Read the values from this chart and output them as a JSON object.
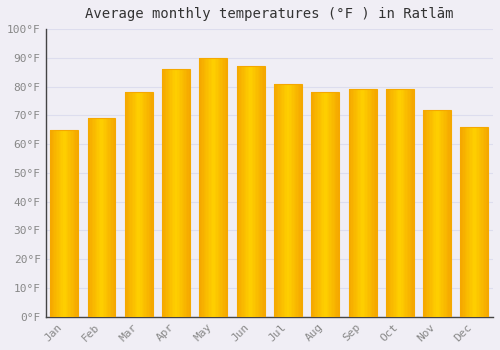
{
  "title": "Average monthly temperatures (°F ) in Ratlām",
  "months": [
    "Jan",
    "Feb",
    "Mar",
    "Apr",
    "May",
    "Jun",
    "Jul",
    "Aug",
    "Sep",
    "Oct",
    "Nov",
    "Dec"
  ],
  "values": [
    65,
    69,
    78,
    86,
    90,
    87,
    81,
    78,
    79,
    79,
    72,
    66
  ],
  "bar_color_center": "#FFD04A",
  "bar_color_edge": "#F5A800",
  "background_color": "#F0EEF5",
  "grid_color": "#DDDDEE",
  "ylim": [
    0,
    100
  ],
  "yticks": [
    0,
    10,
    20,
    30,
    40,
    50,
    60,
    70,
    80,
    90,
    100
  ],
  "ytick_labels": [
    "0°F",
    "10°F",
    "20°F",
    "30°F",
    "40°F",
    "50°F",
    "60°F",
    "70°F",
    "80°F",
    "90°F",
    "100°F"
  ],
  "title_fontsize": 10,
  "tick_fontsize": 8,
  "font_family": "monospace"
}
